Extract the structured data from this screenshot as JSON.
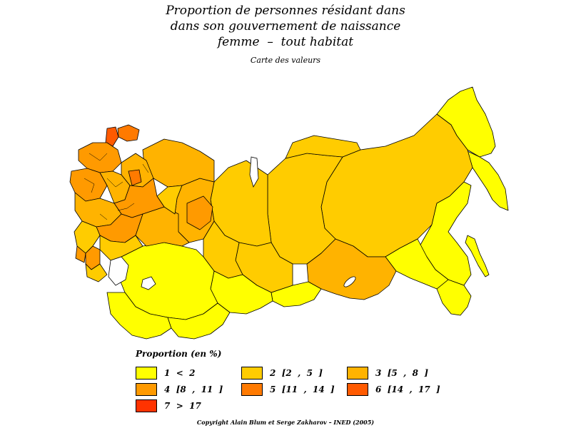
{
  "title_lines": [
    "Proportion de personnes résidant dans",
    "dans son gouvernement de naissance",
    "femme  –  tout habitat"
  ],
  "subtitle": "Carte des valeurs",
  "legend": {
    "title": "Proportion (en %)",
    "items": [
      {
        "label": "1  <  2",
        "color": "#ffff00"
      },
      {
        "label": "2  [2  ,  5  ]",
        "color": "#ffcc00"
      },
      {
        "label": "3  [5  ,  8  ]",
        "color": "#ffb300"
      },
      {
        "label": "4  [8  ,  11  ]",
        "color": "#ff9a00"
      },
      {
        "label": "5  [11  ,  14  ]",
        "color": "#ff7a00"
      },
      {
        "label": "6  [14  ,  17  ]",
        "color": "#ff5a00"
      },
      {
        "label": "7  >  17",
        "color": "#ff3300"
      }
    ]
  },
  "copyright": "Copyright Alain Blum et Serge Zakharov  –  INED (2005)"
}
